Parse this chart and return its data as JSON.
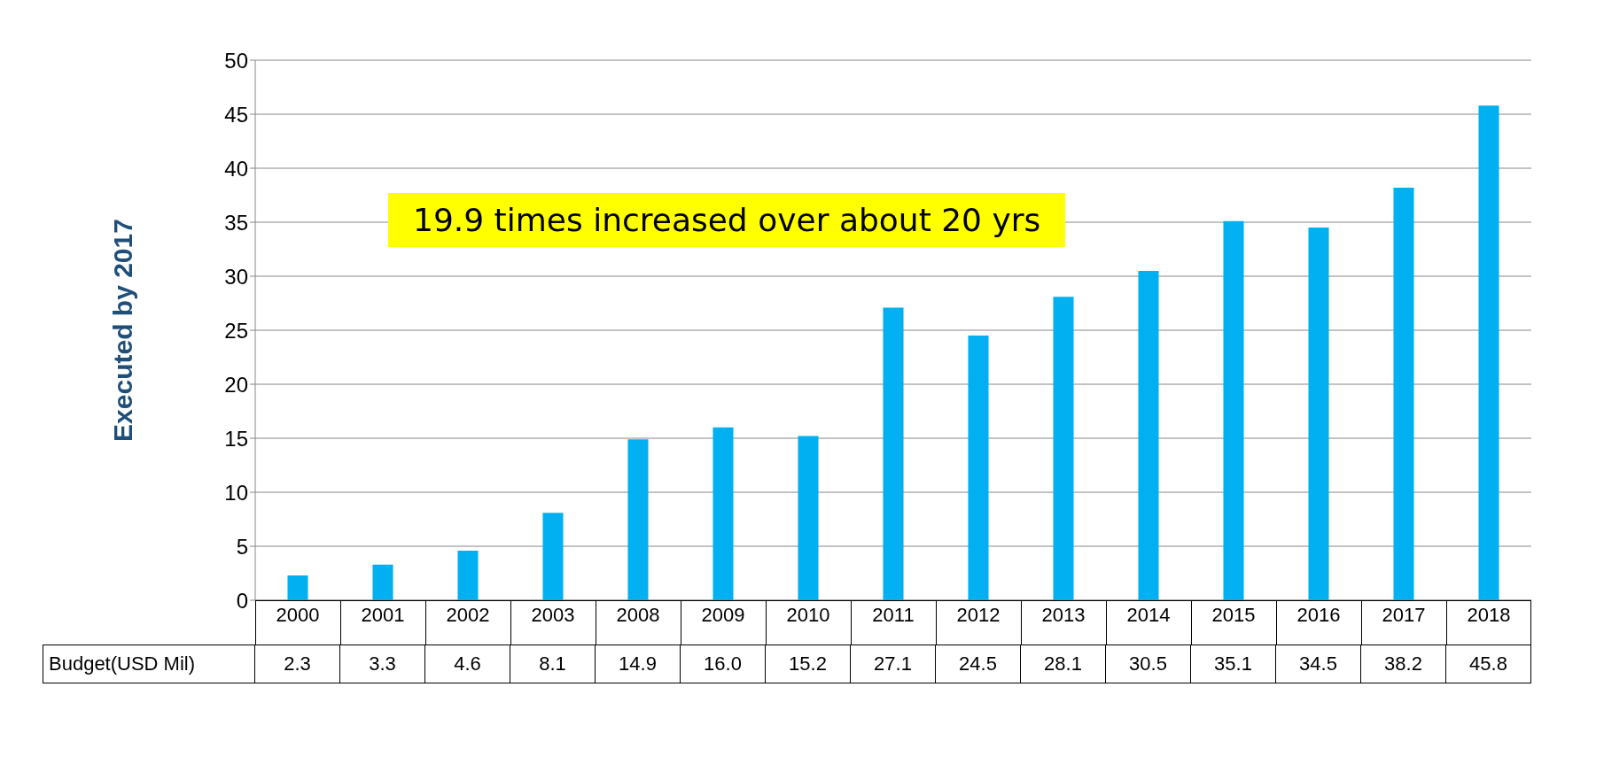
{
  "chart_data": {
    "type": "bar",
    "ylabel": "Executed by 2017",
    "annotations": [
      "19.9 times increased over about 20 yrs"
    ],
    "categories": [
      "2000",
      "2001",
      "2002",
      "2003",
      "2008",
      "2009",
      "2010",
      "2011",
      "2012",
      "2013",
      "2014",
      "2015",
      "2016",
      "2017",
      "2018"
    ],
    "series": [
      {
        "name": "Budget(USD Mil)",
        "color": "#00b0f0",
        "values": [
          2.3,
          3.3,
          4.6,
          8.1,
          14.9,
          16.0,
          15.2,
          27.1,
          24.5,
          28.1,
          30.5,
          35.1,
          34.5,
          38.2,
          45.8
        ],
        "value_labels": [
          "2.3",
          "3.3",
          "4.6",
          "8.1",
          "14.9",
          "16.0",
          "15.2",
          "27.1",
          "24.5",
          "28.1",
          "30.5",
          "35.1",
          "34.5",
          "38.2",
          "45.8"
        ]
      }
    ],
    "ylim": [
      0,
      50
    ],
    "yticks": [
      0,
      5,
      10,
      15,
      20,
      25,
      30,
      35,
      40,
      45,
      50
    ],
    "grid": "y",
    "legend": false
  }
}
